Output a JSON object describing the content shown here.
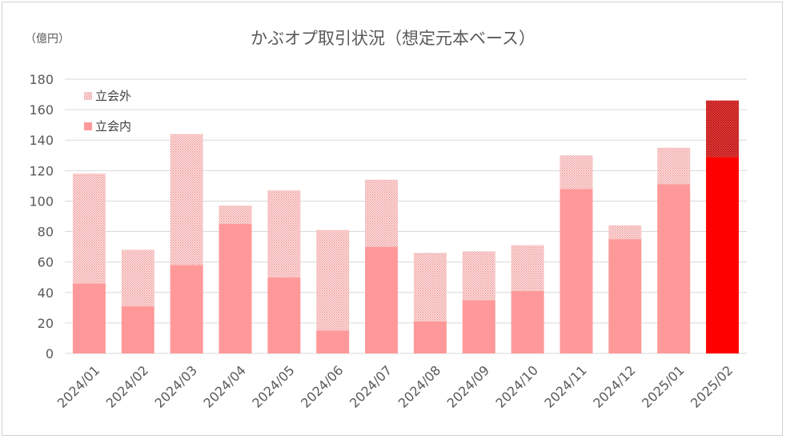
{
  "chart_data": {
    "type": "bar",
    "stacked": true,
    "title": "かぶオプ取引状況（想定元本ベース）",
    "unit_label": "（億円）",
    "ylim": [
      0,
      180
    ],
    "y_ticks": [
      0,
      20,
      40,
      60,
      80,
      100,
      120,
      140,
      160,
      180
    ],
    "grid": true,
    "legend_position": "top-left",
    "categories": [
      "2024/01",
      "2024/02",
      "2024/03",
      "2024/04",
      "2024/05",
      "2024/06",
      "2024/07",
      "2024/08",
      "2024/09",
      "2024/10",
      "2024/11",
      "2024/12",
      "2025/01",
      "2025/02"
    ],
    "series": [
      {
        "name": "立会内",
        "values": [
          46,
          31,
          58,
          85,
          50,
          15,
          70,
          21,
          35,
          41,
          108,
          75,
          111,
          129
        ],
        "color": "#ff9999",
        "highlight_color": "#ff0000",
        "pattern": "solid"
      },
      {
        "name": "立会外",
        "values": [
          72,
          37,
          86,
          12,
          57,
          66,
          44,
          45,
          32,
          30,
          22,
          9,
          24,
          37
        ],
        "color": "#f7b5b5",
        "highlight_color": "#c00000",
        "pattern": "dotted"
      }
    ],
    "highlight_category": "2025/02"
  }
}
